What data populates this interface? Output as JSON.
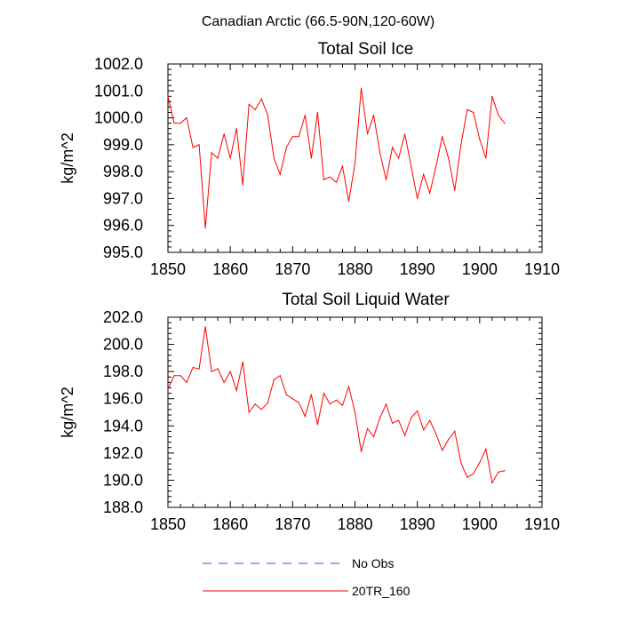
{
  "main_title": "Canadian Arctic (66.5-90N,120-60W)",
  "legend": [
    {
      "label": "No Obs",
      "color": "#4a4adf",
      "style": "dashed"
    },
    {
      "label": "20TR_160",
      "color": "#ff0000",
      "style": "solid"
    }
  ],
  "chart_data": [
    {
      "type": "line",
      "title": "Total Soil Ice",
      "xlabel": "",
      "ylabel": "kg/m^2",
      "xlim": [
        1850,
        1910
      ],
      "ylim": [
        995.0,
        1002.0
      ],
      "xticks": [
        1850,
        1860,
        1870,
        1880,
        1890,
        1900,
        1910
      ],
      "yticks": [
        "995.0",
        "996.0",
        "997.0",
        "998.0",
        "999.0",
        "1000.0",
        "1001.0",
        "1002.0"
      ],
      "series": [
        {
          "name": "20TR_160",
          "color": "#ff0000",
          "x": [
            1850,
            1851,
            1852,
            1853,
            1854,
            1855,
            1856,
            1857,
            1858,
            1859,
            1860,
            1861,
            1862,
            1863,
            1864,
            1865,
            1866,
            1867,
            1868,
            1869,
            1870,
            1871,
            1872,
            1873,
            1874,
            1875,
            1876,
            1877,
            1878,
            1879,
            1880,
            1881,
            1882,
            1883,
            1884,
            1885,
            1886,
            1887,
            1888,
            1889,
            1890,
            1891,
            1892,
            1893,
            1894,
            1895,
            1896,
            1897,
            1898,
            1899,
            1900,
            1901,
            1902,
            1903,
            1904
          ],
          "values": [
            1000.8,
            999.8,
            999.8,
            1000.0,
            998.9,
            999.0,
            995.9,
            998.7,
            998.5,
            999.4,
            998.5,
            999.6,
            997.5,
            1000.5,
            1000.3,
            1000.7,
            1000.1,
            998.5,
            997.9,
            998.9,
            999.3,
            999.3,
            1000.1,
            998.5,
            1000.2,
            997.7,
            997.8,
            997.6,
            998.2,
            996.9,
            998.3,
            1001.1,
            999.4,
            1000.1,
            998.7,
            997.7,
            998.9,
            998.5,
            999.4,
            998.2,
            997.0,
            997.9,
            997.2,
            998.2,
            999.3,
            998.5,
            997.3,
            999.0,
            1000.3,
            1000.2,
            999.2,
            998.5,
            1000.8,
            1000.1,
            999.8
          ]
        }
      ]
    },
    {
      "type": "line",
      "title": "Total Soil Liquid Water",
      "xlabel": "",
      "ylabel": "kg/m^2",
      "xlim": [
        1850,
        1910
      ],
      "ylim": [
        188.0,
        202.0
      ],
      "xticks": [
        1850,
        1860,
        1870,
        1880,
        1890,
        1900,
        1910
      ],
      "yticks": [
        "188.0",
        "190.0",
        "192.0",
        "194.0",
        "196.0",
        "198.0",
        "200.0",
        "202.0"
      ],
      "series": [
        {
          "name": "20TR_160",
          "color": "#ff0000",
          "x": [
            1850,
            1851,
            1852,
            1853,
            1854,
            1855,
            1856,
            1857,
            1858,
            1859,
            1860,
            1861,
            1862,
            1863,
            1864,
            1865,
            1866,
            1867,
            1868,
            1869,
            1870,
            1871,
            1872,
            1873,
            1874,
            1875,
            1876,
            1877,
            1878,
            1879,
            1880,
            1881,
            1882,
            1883,
            1884,
            1885,
            1886,
            1887,
            1888,
            1889,
            1890,
            1891,
            1892,
            1893,
            1894,
            1895,
            1896,
            1897,
            1898,
            1899,
            1900,
            1901,
            1902,
            1903,
            1904
          ],
          "values": [
            196.7,
            197.7,
            197.7,
            197.2,
            198.3,
            198.2,
            201.3,
            198.0,
            198.2,
            197.2,
            198.0,
            196.6,
            198.7,
            195.0,
            195.6,
            195.2,
            195.7,
            197.4,
            197.7,
            196.3,
            196.0,
            195.7,
            194.7,
            196.3,
            194.1,
            196.4,
            195.6,
            195.9,
            195.5,
            196.9,
            195.0,
            192.1,
            193.8,
            193.2,
            194.6,
            195.6,
            194.2,
            194.4,
            193.3,
            194.6,
            195.1,
            193.7,
            194.4,
            193.4,
            192.2,
            193.0,
            193.6,
            191.3,
            190.2,
            190.5,
            191.3,
            192.3,
            189.8,
            190.6,
            190.7
          ]
        }
      ]
    }
  ]
}
